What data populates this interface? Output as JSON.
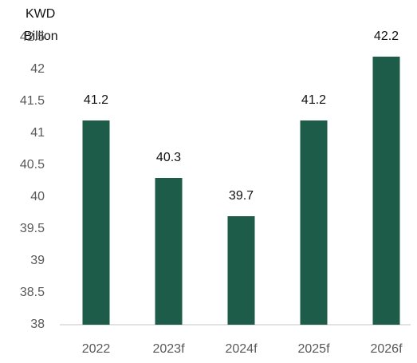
{
  "chart_data": {
    "type": "bar",
    "ylabel_lines": [
      "KWD",
      "Billion"
    ],
    "categories": [
      "2022",
      "2023f",
      "2024f",
      "2025f",
      "2026f"
    ],
    "values": [
      41.2,
      40.3,
      39.7,
      41.2,
      42.2
    ],
    "color": "#1e5c4a",
    "ylim": [
      38,
      42.5
    ],
    "yticks": [
      38,
      38.5,
      39,
      39.5,
      40,
      40.5,
      41,
      41.5,
      42,
      42.5
    ],
    "grid": false,
    "data_labels": true
  }
}
